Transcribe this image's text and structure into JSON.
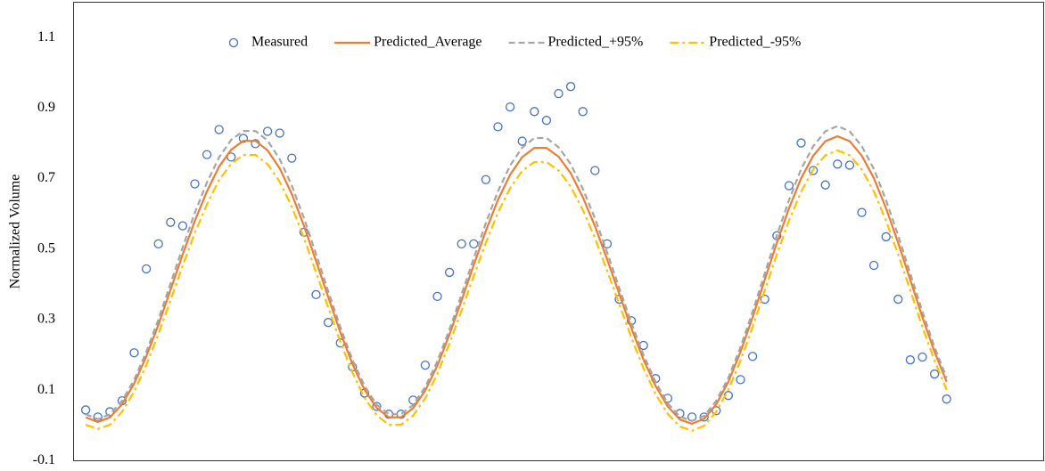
{
  "chart_data": {
    "type": "line",
    "y_label": "Normalized Volume",
    "x": [
      1,
      2,
      3,
      4,
      5,
      6,
      7,
      8,
      9,
      10,
      11,
      12,
      13,
      14,
      15,
      16,
      17,
      18,
      19,
      20,
      21,
      22,
      23,
      24,
      25,
      26,
      27,
      28,
      29,
      30,
      31,
      32,
      33,
      34,
      35,
      36,
      37,
      38,
      39,
      40,
      41,
      42,
      43,
      44,
      45,
      46,
      47,
      48,
      49,
      50,
      51,
      52,
      53,
      54,
      55,
      56,
      57,
      58,
      59,
      60,
      61,
      62,
      63,
      64,
      65,
      66,
      67,
      68,
      69,
      70,
      71,
      72
    ],
    "xlim": [
      0,
      80
    ],
    "ylim": [
      -0.1,
      1.2
    ],
    "yticks": [
      -0.1,
      0.1,
      0.3,
      0.5,
      0.7,
      0.9,
      1.1
    ],
    "grid": false,
    "legend": "top",
    "series": [
      {
        "name": "Measured",
        "color": "#4472c4",
        "style": "marker",
        "values": [
          0.044,
          0.024,
          0.039,
          0.07,
          0.206,
          0.444,
          0.515,
          0.576,
          0.566,
          0.685,
          0.768,
          0.839,
          0.761,
          0.814,
          0.799,
          0.834,
          0.829,
          0.758,
          0.548,
          0.371,
          0.292,
          0.234,
          0.166,
          0.092,
          0.054,
          0.032,
          0.032,
          0.072,
          0.171,
          0.366,
          0.434,
          0.515,
          0.515,
          0.697,
          0.847,
          0.903,
          0.806,
          0.89,
          0.865,
          0.941,
          0.961,
          0.89,
          0.723,
          0.515,
          0.358,
          0.297,
          0.227,
          0.133,
          0.077,
          0.034,
          0.024,
          0.024,
          0.042,
          0.085,
          0.13,
          0.196,
          0.358,
          0.538,
          0.68,
          0.801,
          0.723,
          0.682,
          0.741,
          0.738,
          0.604,
          0.454,
          0.535,
          0.358,
          0.186,
          0.194,
          0.146,
          0.075
        ]
      },
      {
        "name": "Predicted_Average",
        "color": "#ed7d31",
        "style": "solid",
        "values": [
          0.023,
          0.01,
          0.023,
          0.06,
          0.119,
          0.196,
          0.286,
          0.385,
          0.485,
          0.58,
          0.664,
          0.734,
          0.782,
          0.807,
          0.807,
          0.78,
          0.729,
          0.656,
          0.566,
          0.466,
          0.364,
          0.264,
          0.174,
          0.101,
          0.05,
          0.023,
          0.023,
          0.049,
          0.099,
          0.17,
          0.258,
          0.355,
          0.455,
          0.552,
          0.64,
          0.711,
          0.761,
          0.787,
          0.787,
          0.762,
          0.715,
          0.647,
          0.565,
          0.471,
          0.373,
          0.276,
          0.187,
          0.112,
          0.054,
          0.017,
          0.005,
          0.019,
          0.06,
          0.124,
          0.209,
          0.307,
          0.413,
          0.518,
          0.616,
          0.701,
          0.765,
          0.806,
          0.82,
          0.806,
          0.765,
          0.701,
          0.616,
          0.518,
          0.413,
          0.307,
          0.209,
          0.124
        ]
      },
      {
        "name": "Predicted_+95%",
        "color": "#a5a5a5",
        "style": "dashed",
        "values": [
          0.032,
          0.018,
          0.032,
          0.07,
          0.13,
          0.209,
          0.301,
          0.403,
          0.505,
          0.603,
          0.689,
          0.76,
          0.81,
          0.835,
          0.835,
          0.808,
          0.755,
          0.68,
          0.588,
          0.486,
          0.381,
          0.279,
          0.186,
          0.112,
          0.059,
          0.032,
          0.032,
          0.058,
          0.109,
          0.182,
          0.272,
          0.372,
          0.474,
          0.574,
          0.664,
          0.737,
          0.788,
          0.815,
          0.815,
          0.789,
          0.741,
          0.671,
          0.587,
          0.491,
          0.39,
          0.291,
          0.2,
          0.123,
          0.063,
          0.025,
          0.013,
          0.027,
          0.07,
          0.135,
          0.222,
          0.323,
          0.431,
          0.539,
          0.639,
          0.727,
          0.792,
          0.834,
          0.849,
          0.834,
          0.792,
          0.727,
          0.639,
          0.539,
          0.431,
          0.323,
          0.222,
          0.135
        ]
      },
      {
        "name": "Predicted_-95%",
        "color": "#ffc000",
        "style": "dashdot",
        "values": [
          0.002,
          -0.01,
          0.002,
          0.039,
          0.096,
          0.171,
          0.259,
          0.355,
          0.453,
          0.546,
          0.627,
          0.696,
          0.742,
          0.767,
          0.767,
          0.741,
          0.691,
          0.62,
          0.532,
          0.434,
          0.335,
          0.237,
          0.15,
          0.078,
          0.029,
          0.002,
          0.002,
          0.028,
          0.077,
          0.146,
          0.232,
          0.326,
          0.424,
          0.518,
          0.604,
          0.673,
          0.722,
          0.747,
          0.747,
          0.723,
          0.677,
          0.611,
          0.531,
          0.439,
          0.344,
          0.249,
          0.162,
          0.089,
          0.033,
          -0.003,
          -0.015,
          -0.001,
          0.039,
          0.101,
          0.184,
          0.279,
          0.383,
          0.485,
          0.581,
          0.663,
          0.726,
          0.766,
          0.78,
          0.766,
          0.726,
          0.663,
          0.581,
          0.485,
          0.383,
          0.279,
          0.184,
          0.101
        ]
      }
    ]
  }
}
